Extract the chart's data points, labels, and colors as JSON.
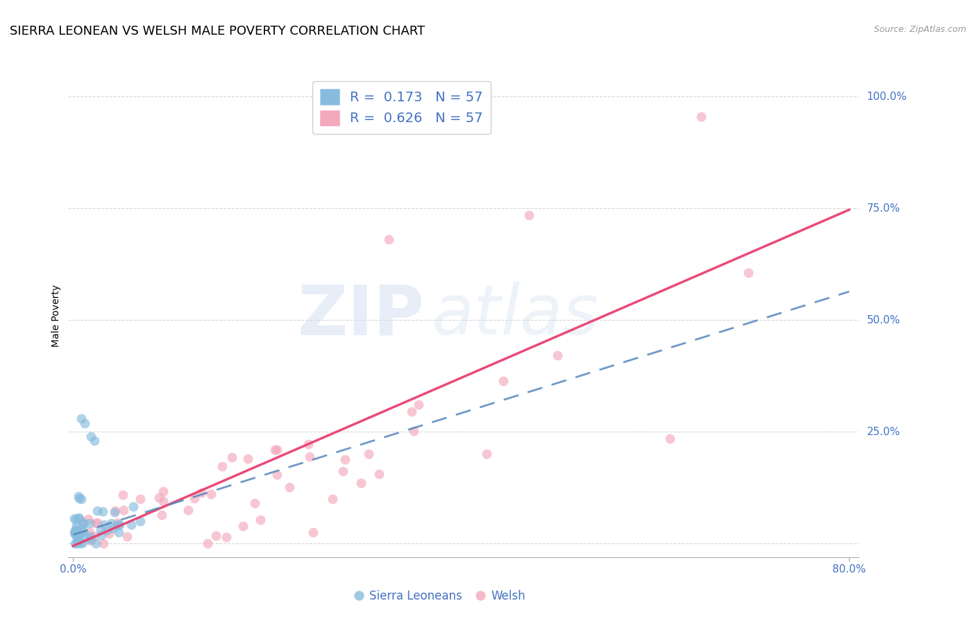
{
  "title": "SIERRA LEONEAN VS WELSH MALE POVERTY CORRELATION CHART",
  "source": "Source: ZipAtlas.com",
  "ylabel": "Male Poverty",
  "yticks": [
    0.0,
    0.25,
    0.5,
    0.75,
    1.0
  ],
  "ytick_labels": [
    "",
    "25.0%",
    "50.0%",
    "75.0%",
    "100.0%"
  ],
  "xlim": [
    -0.005,
    0.81
  ],
  "ylim": [
    -0.03,
    1.05
  ],
  "sl_color": "#87BCDE",
  "welsh_color": "#F4A8BC",
  "sl_line_color": "#5588BB",
  "welsh_line_color": "#E84070",
  "sl_r": 0.173,
  "welsh_r": 0.626,
  "sl_n": 57,
  "welsh_n": 57,
  "watermark_zip": "ZIP",
  "watermark_atlas": "atlas",
  "background_color": "#ffffff",
  "grid_color": "#cccccc",
  "title_fontsize": 13,
  "axis_label_fontsize": 10,
  "tick_fontsize": 11,
  "legend_fontsize": 14,
  "blue_tick_color": "#4472c4",
  "sl_line_slope": 0.68,
  "sl_line_intercept": 0.02,
  "welsh_line_slope": 0.94,
  "welsh_line_intercept": -0.005
}
